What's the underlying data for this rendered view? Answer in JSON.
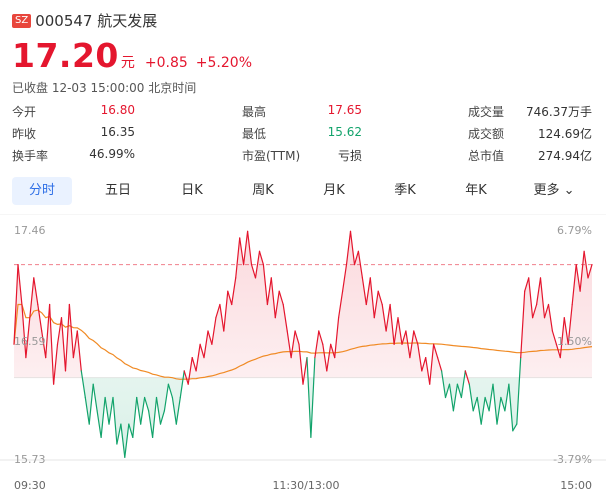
{
  "header": {
    "exchange": "SZ",
    "code_name": "000547 航天发展"
  },
  "quote": {
    "price": "17.20",
    "unit": "元",
    "change": "+0.85",
    "change_pct": "+5.20%"
  },
  "status": "已收盘 12-03 15:00:00 北京时间",
  "stats": [
    [
      {
        "label": "今开",
        "value": "16.80",
        "color": "red"
      },
      {
        "label": "最高",
        "value": "17.65",
        "color": "red"
      },
      {
        "label": "成交量",
        "value": "746.37万手",
        "color": ""
      }
    ],
    [
      {
        "label": "昨收",
        "value": "16.35",
        "color": ""
      },
      {
        "label": "最低",
        "value": "15.62",
        "color": "green"
      },
      {
        "label": "成交额",
        "value": "124.69亿",
        "color": ""
      }
    ],
    [
      {
        "label": "换手率",
        "value": "46.99%",
        "color": ""
      },
      {
        "label": "市盈(TTM)",
        "value": "亏损",
        "color": ""
      },
      {
        "label": "总市值",
        "value": "274.94亿",
        "color": ""
      }
    ]
  ],
  "tabs": [
    "分时",
    "五日",
    "日K",
    "周K",
    "月K",
    "季K",
    "年K",
    "更多"
  ],
  "active_tab": 0,
  "colors": {
    "up": "#e4162e",
    "down": "#12a36b",
    "avg": "#f08a24",
    "accent": "#2f6fe6"
  },
  "chart_data": {
    "type": "line",
    "y_left_ticks": [
      "17.46",
      "16.59",
      "15.73"
    ],
    "y_right_ticks": [
      "6.79%",
      "1.50%",
      "-3.79%"
    ],
    "x_ticks": [
      "09:30",
      "11:30/13:00",
      "15:00"
    ],
    "ylim": [
      15.73,
      17.46
    ],
    "prev_close": 16.35,
    "reference_line": 17.2,
    "series": [
      {
        "values": [
          16.6,
          17.2,
          16.9,
          16.5,
          16.8,
          17.1,
          16.9,
          16.7,
          16.5,
          16.9,
          16.3,
          16.6,
          16.8,
          16.4,
          16.9,
          16.5,
          16.7,
          16.4,
          16.2,
          16.0,
          16.3,
          16.1,
          15.9,
          16.2,
          16.0,
          16.2,
          15.85,
          16.0,
          15.75,
          16.0,
          15.9,
          16.2,
          16.0,
          16.2,
          16.1,
          15.9,
          16.2,
          16.0,
          16.1,
          16.3,
          16.2,
          16.0,
          16.2,
          16.4,
          16.3,
          16.5,
          16.4,
          16.6,
          16.5,
          16.7,
          16.6,
          16.8,
          16.9,
          16.7,
          17.0,
          16.9,
          17.1,
          17.4,
          17.2,
          17.45,
          17.2,
          17.1,
          17.3,
          17.2,
          16.9,
          17.1,
          16.8,
          17.0,
          16.9,
          16.7,
          16.5,
          16.7,
          16.6,
          16.3,
          16.5,
          15.9,
          16.5,
          16.7,
          16.6,
          16.4,
          16.6,
          16.5,
          16.8,
          17.0,
          17.2,
          17.45,
          17.2,
          17.3,
          17.1,
          16.9,
          17.1,
          16.8,
          17.0,
          16.9,
          16.7,
          16.9,
          16.6,
          16.8,
          16.6,
          16.7,
          16.5,
          16.7,
          16.6,
          16.4,
          16.5,
          16.3,
          16.6,
          16.5,
          16.4,
          16.2,
          16.3,
          16.1,
          16.3,
          16.2,
          16.4,
          16.3,
          16.1,
          16.2,
          16.0,
          16.2,
          16.1,
          16.3,
          16.0,
          16.2,
          16.1,
          16.3,
          15.95,
          16.0,
          16.5,
          17.0,
          17.1,
          16.8,
          16.9,
          17.1,
          16.8,
          16.9,
          16.7,
          16.6,
          16.5,
          16.8,
          16.6,
          16.9,
          17.2,
          17.0,
          17.3,
          17.1,
          17.2
        ]
      }
    ]
  }
}
